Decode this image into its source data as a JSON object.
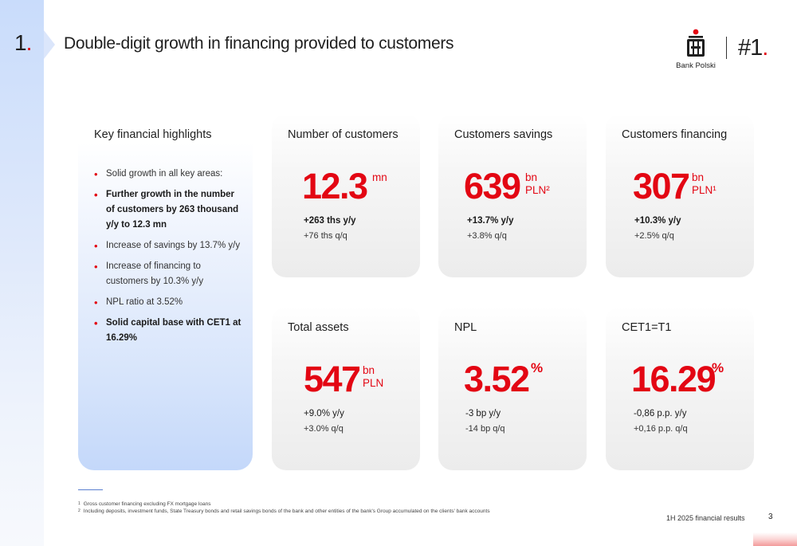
{
  "header": {
    "section_number": "1",
    "section_dot": ".",
    "title": "Double-digit growth in financing provided to customers",
    "logo_text": "Bank Polski",
    "rank_text": "#1",
    "rank_dot": "."
  },
  "highlights": {
    "title": "Key financial highlights",
    "items": [
      "Solid growth in all key areas:",
      "Further growth in the number of customers by 263 thousand y/y to 12.3 mn",
      "Increase of savings by 13.7% y/y",
      "Increase of financing to customers by 10.3% y/y",
      "NPL ratio at 3.52%",
      "Solid capital base with CET1 at 16.29%"
    ]
  },
  "cards": [
    {
      "title": "Number of customers",
      "value": "12.3",
      "unit_line1": "mn",
      "unit_line2": "",
      "delta1": "+263 ths y/y",
      "delta2": "+76 ths q/q"
    },
    {
      "title": "Customers savings",
      "value": "639",
      "unit_line1": "bn",
      "unit_line2": "PLN²",
      "delta1": "+13.7% y/y",
      "delta2": "+3.8% q/q"
    },
    {
      "title": "Customers financing",
      "value": "307",
      "unit_line1": "bn",
      "unit_line2": "PLN¹",
      "delta1": "+10.3% y/y",
      "delta2": "+2.5% q/q"
    },
    {
      "title": "Total assets",
      "value": "547",
      "unit_line1": "bn",
      "unit_line2": "PLN",
      "delta1": "+9.0% y/y",
      "delta2": "+3.0% q/q"
    },
    {
      "title": "NPL",
      "value": "3.52",
      "unit_line1": "%",
      "unit_line2": "",
      "delta1": "-3 bp y/y",
      "delta2": "-14 bp q/q"
    },
    {
      "title": "CET1=T1",
      "value": "16.29",
      "unit_line1": "%",
      "unit_line2": "",
      "delta1": "-0,86 p.p. y/y",
      "delta2": "+0,16 p.p. q/q"
    }
  ],
  "footnotes": [
    {
      "marker": "1",
      "text": "Gross customer financing excluding FX mortgage loans"
    },
    {
      "marker": "2",
      "text": "Including deposits, investment funds, State Treasury bonds and retail savings bonds of the bank and other entities of the bank's Group accumulated on the clients' bank accounts"
    }
  ],
  "footer": {
    "label": "1H 2025 financial results",
    "page_number": "3"
  },
  "colors": {
    "accent_red": "#e30613",
    "highlight_blue": "#c4d8fa"
  }
}
